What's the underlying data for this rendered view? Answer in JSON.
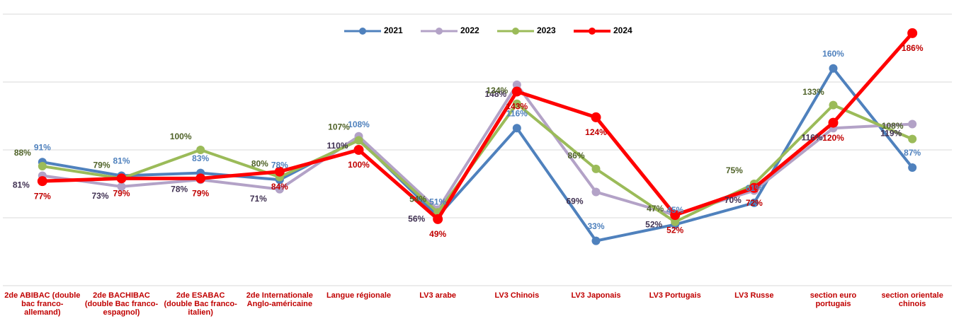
{
  "chart_data": {
    "type": "line",
    "categories": [
      "2de ABIBAC (double bac franco-allemand)",
      "2de BACHIBAC (double Bac franco-espagnol)",
      "2de ESABAC (double Bac franco-italien)",
      "2de Internationale Anglo-américaine",
      "Langue régionale",
      "LV3 arabe",
      "LV3 Chinois",
      "LV3 Japonais",
      "LV3 Portugais",
      "LV3 Russe",
      "section euro portugais",
      "section orientale chinois"
    ],
    "ylim": [
      0,
      200
    ],
    "yticks": [
      0,
      50,
      100,
      150,
      200
    ],
    "grid": true,
    "legend": "top",
    "series": [
      {
        "name": "2021",
        "color": "#4f81bd",
        "label_color": "#4f81bd",
        "values": [
          91,
          81,
          83,
          78,
          108,
          51,
          116,
          33,
          45,
          61,
          160,
          87
        ],
        "value_labels": [
          "91%",
          "81%",
          "83%",
          "78%",
          "108%",
          "51%",
          "116%",
          "33%",
          "45%",
          "61%",
          "160%",
          "87%"
        ]
      },
      {
        "name": "2022",
        "color": "#b3a2c7",
        "label_color": "#403152",
        "values": [
          81,
          73,
          78,
          71,
          110,
          56,
          148,
          69,
          52,
          70,
          116,
          119
        ],
        "value_labels": [
          "81%",
          "73%",
          "78%",
          "71%",
          "110%",
          "56%",
          "148%",
          "69%",
          "52%",
          "70%",
          "116%",
          "119%"
        ]
      },
      {
        "name": "2023",
        "color": "#9bbb59",
        "label_color": "#4f6228",
        "values": [
          88,
          79,
          100,
          80,
          107,
          54,
          134,
          86,
          47,
          75,
          133,
          108
        ],
        "value_labels": [
          "88%",
          "79%",
          "100%",
          "80%",
          "107%",
          "54%",
          "134%",
          "86%",
          "47%",
          "75%",
          "133%",
          "108%"
        ]
      },
      {
        "name": "2024",
        "color": "#ff0000",
        "label_color": "#c00000",
        "values": [
          77,
          79,
          79,
          84,
          100,
          49,
          143,
          124,
          52,
          72,
          120,
          186
        ],
        "value_labels": [
          "77%",
          "79%",
          "79%",
          "84%",
          "100%",
          "49%",
          "143%",
          "124%",
          "52%",
          "72%",
          "120%",
          "186%"
        ]
      }
    ]
  }
}
